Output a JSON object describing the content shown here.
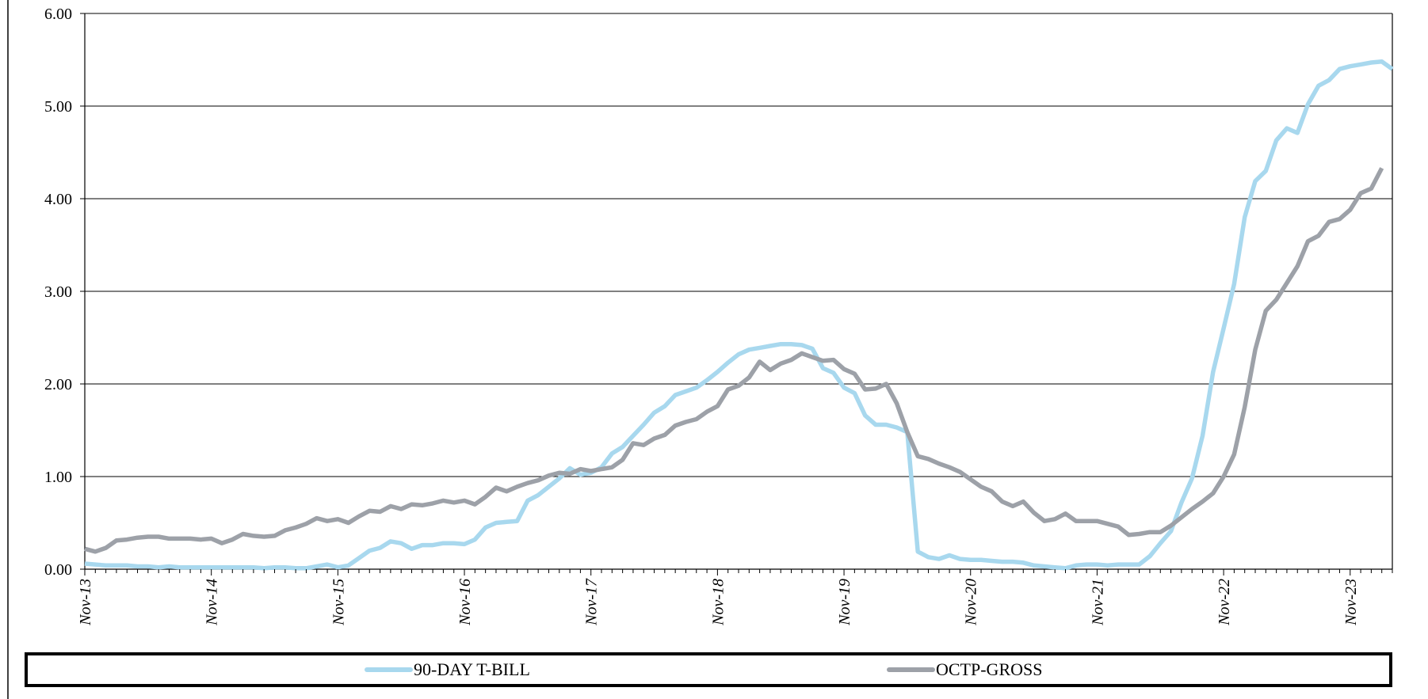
{
  "chart_data": {
    "type": "line",
    "title": "",
    "xlabel": "",
    "ylabel": "",
    "ylim": [
      0,
      6
    ],
    "y_ticks": [
      "0.00",
      "1.00",
      "2.00",
      "3.00",
      "4.00",
      "5.00",
      "6.00"
    ],
    "x_ticks": [
      "Nov-13",
      "Nov-14",
      "Nov-15",
      "Nov-16",
      "Nov-17",
      "Nov-18",
      "Nov-19",
      "Nov-20",
      "Nov-21",
      "Nov-22",
      "Nov-23"
    ],
    "grid": "horizontal",
    "legend_position": "bottom",
    "series": [
      {
        "name": "90-DAY T-BILL",
        "color": "#a8d8ee",
        "points": [
          [
            0,
            0.06
          ],
          [
            1,
            0.05
          ],
          [
            2,
            0.04
          ],
          [
            3,
            0.04
          ],
          [
            4,
            0.04
          ],
          [
            5,
            0.03
          ],
          [
            6,
            0.03
          ],
          [
            7,
            0.02
          ],
          [
            8,
            0.03
          ],
          [
            9,
            0.02
          ],
          [
            10,
            0.02
          ],
          [
            11,
            0.02
          ],
          [
            12,
            0.02
          ],
          [
            13,
            0.02
          ],
          [
            14,
            0.02
          ],
          [
            15,
            0.02
          ],
          [
            16,
            0.02
          ],
          [
            17,
            0.01
          ],
          [
            18,
            0.02
          ],
          [
            19,
            0.02
          ],
          [
            20,
            0.01
          ],
          [
            21,
            0.01
          ],
          [
            22,
            0.03
          ],
          [
            23,
            0.05
          ],
          [
            24,
            0.02
          ],
          [
            25,
            0.04
          ],
          [
            26,
            0.12
          ],
          [
            27,
            0.2
          ],
          [
            28,
            0.23
          ],
          [
            29,
            0.3
          ],
          [
            30,
            0.28
          ],
          [
            31,
            0.22
          ],
          [
            32,
            0.26
          ],
          [
            33,
            0.26
          ],
          [
            34,
            0.28
          ],
          [
            35,
            0.28
          ],
          [
            36,
            0.27
          ],
          [
            37,
            0.32
          ],
          [
            38,
            0.45
          ],
          [
            39,
            0.5
          ],
          [
            40,
            0.51
          ],
          [
            41,
            0.52
          ],
          [
            42,
            0.74
          ],
          [
            43,
            0.8
          ],
          [
            44,
            0.89
          ],
          [
            45,
            0.98
          ],
          [
            46,
            1.09
          ],
          [
            47,
            1.02
          ],
          [
            48,
            1.04
          ],
          [
            49,
            1.1
          ],
          [
            50,
            1.25
          ],
          [
            51,
            1.32
          ],
          [
            52,
            1.44
          ],
          [
            53,
            1.56
          ],
          [
            54,
            1.69
          ],
          [
            55,
            1.76
          ],
          [
            56,
            1.88
          ],
          [
            57,
            1.92
          ],
          [
            58,
            1.96
          ],
          [
            59,
            2.04
          ],
          [
            60,
            2.13
          ],
          [
            61,
            2.23
          ],
          [
            62,
            2.32
          ],
          [
            63,
            2.37
          ],
          [
            64,
            2.39
          ],
          [
            65,
            2.41
          ],
          [
            66,
            2.43
          ],
          [
            67,
            2.43
          ],
          [
            68,
            2.42
          ],
          [
            69,
            2.38
          ],
          [
            70,
            2.17
          ],
          [
            71,
            2.12
          ],
          [
            72,
            1.96
          ],
          [
            73,
            1.9
          ],
          [
            74,
            1.66
          ],
          [
            75,
            1.56
          ],
          [
            76,
            1.56
          ],
          [
            77,
            1.53
          ],
          [
            78,
            1.48
          ],
          [
            79,
            0.19
          ],
          [
            80,
            0.13
          ],
          [
            81,
            0.11
          ],
          [
            82,
            0.15
          ],
          [
            83,
            0.11
          ],
          [
            84,
            0.1
          ],
          [
            85,
            0.1
          ],
          [
            86,
            0.09
          ],
          [
            87,
            0.08
          ],
          [
            88,
            0.08
          ],
          [
            89,
            0.07
          ],
          [
            90,
            0.04
          ],
          [
            91,
            0.03
          ],
          [
            92,
            0.02
          ],
          [
            93,
            0.01
          ],
          [
            94,
            0.04
          ],
          [
            95,
            0.05
          ],
          [
            96,
            0.05
          ],
          [
            97,
            0.04
          ],
          [
            98,
            0.05
          ],
          [
            99,
            0.05
          ],
          [
            100,
            0.05
          ],
          [
            101,
            0.14
          ],
          [
            102,
            0.28
          ],
          [
            103,
            0.41
          ],
          [
            104,
            0.72
          ],
          [
            105,
            0.98
          ],
          [
            106,
            1.44
          ],
          [
            107,
            2.13
          ],
          [
            108,
            2.6
          ],
          [
            109,
            3.08
          ],
          [
            110,
            3.8
          ],
          [
            111,
            4.19
          ],
          [
            112,
            4.3
          ],
          [
            113,
            4.63
          ],
          [
            114,
            4.76
          ],
          [
            115,
            4.71
          ],
          [
            116,
            5.02
          ],
          [
            117,
            5.22
          ],
          [
            118,
            5.28
          ],
          [
            119,
            5.4
          ],
          [
            120,
            5.43
          ],
          [
            121,
            5.45
          ],
          [
            122,
            5.47
          ],
          [
            123,
            5.48
          ],
          [
            124,
            5.4
          ]
        ]
      },
      {
        "name": "OCTP-GROSS",
        "color": "#9da1a8",
        "points": [
          [
            0,
            0.22
          ],
          [
            1,
            0.19
          ],
          [
            2,
            0.23
          ],
          [
            3,
            0.31
          ],
          [
            4,
            0.32
          ],
          [
            5,
            0.34
          ],
          [
            6,
            0.35
          ],
          [
            7,
            0.35
          ],
          [
            8,
            0.33
          ],
          [
            9,
            0.33
          ],
          [
            10,
            0.33
          ],
          [
            11,
            0.32
          ],
          [
            12,
            0.33
          ],
          [
            13,
            0.28
          ],
          [
            14,
            0.32
          ],
          [
            15,
            0.38
          ],
          [
            16,
            0.36
          ],
          [
            17,
            0.35
          ],
          [
            18,
            0.36
          ],
          [
            19,
            0.42
          ],
          [
            20,
            0.45
          ],
          [
            21,
            0.49
          ],
          [
            22,
            0.55
          ],
          [
            23,
            0.52
          ],
          [
            24,
            0.54
          ],
          [
            25,
            0.5
          ],
          [
            26,
            0.57
          ],
          [
            27,
            0.63
          ],
          [
            28,
            0.62
          ],
          [
            29,
            0.68
          ],
          [
            30,
            0.65
          ],
          [
            31,
            0.7
          ],
          [
            32,
            0.69
          ],
          [
            33,
            0.71
          ],
          [
            34,
            0.74
          ],
          [
            35,
            0.72
          ],
          [
            36,
            0.74
          ],
          [
            37,
            0.7
          ],
          [
            38,
            0.78
          ],
          [
            39,
            0.88
          ],
          [
            40,
            0.84
          ],
          [
            41,
            0.89
          ],
          [
            42,
            0.93
          ],
          [
            43,
            0.96
          ],
          [
            44,
            1.01
          ],
          [
            45,
            1.04
          ],
          [
            46,
            1.03
          ],
          [
            47,
            1.08
          ],
          [
            48,
            1.06
          ],
          [
            49,
            1.08
          ],
          [
            50,
            1.1
          ],
          [
            51,
            1.18
          ],
          [
            52,
            1.36
          ],
          [
            53,
            1.34
          ],
          [
            54,
            1.41
          ],
          [
            55,
            1.45
          ],
          [
            56,
            1.55
          ],
          [
            57,
            1.59
          ],
          [
            58,
            1.62
          ],
          [
            59,
            1.7
          ],
          [
            60,
            1.76
          ],
          [
            61,
            1.94
          ],
          [
            62,
            1.98
          ],
          [
            63,
            2.07
          ],
          [
            64,
            2.24
          ],
          [
            65,
            2.15
          ],
          [
            66,
            2.22
          ],
          [
            67,
            2.26
          ],
          [
            68,
            2.33
          ],
          [
            69,
            2.29
          ],
          [
            70,
            2.25
          ],
          [
            71,
            2.26
          ],
          [
            72,
            2.16
          ],
          [
            73,
            2.11
          ],
          [
            74,
            1.94
          ],
          [
            75,
            1.95
          ],
          [
            76,
            2.0
          ],
          [
            77,
            1.79
          ],
          [
            78,
            1.48
          ],
          [
            79,
            1.22
          ],
          [
            80,
            1.19
          ],
          [
            81,
            1.14
          ],
          [
            82,
            1.1
          ],
          [
            83,
            1.05
          ],
          [
            84,
            0.97
          ],
          [
            85,
            0.89
          ],
          [
            86,
            0.84
          ],
          [
            87,
            0.73
          ],
          [
            88,
            0.68
          ],
          [
            89,
            0.73
          ],
          [
            90,
            0.61
          ],
          [
            91,
            0.52
          ],
          [
            92,
            0.54
          ],
          [
            93,
            0.6
          ],
          [
            94,
            0.52
          ],
          [
            95,
            0.52
          ],
          [
            96,
            0.52
          ],
          [
            97,
            0.49
          ],
          [
            98,
            0.46
          ],
          [
            99,
            0.37
          ],
          [
            100,
            0.38
          ],
          [
            101,
            0.4
          ],
          [
            102,
            0.4
          ],
          [
            103,
            0.47
          ],
          [
            104,
            0.56
          ],
          [
            105,
            0.65
          ],
          [
            106,
            0.73
          ],
          [
            107,
            0.82
          ],
          [
            108,
            1.0
          ],
          [
            109,
            1.24
          ],
          [
            110,
            1.75
          ],
          [
            111,
            2.37
          ],
          [
            112,
            2.79
          ],
          [
            113,
            2.91
          ],
          [
            114,
            3.09
          ],
          [
            115,
            3.27
          ],
          [
            116,
            3.54
          ],
          [
            117,
            3.6
          ],
          [
            118,
            3.75
          ],
          [
            119,
            3.78
          ],
          [
            120,
            3.88
          ],
          [
            121,
            4.06
          ],
          [
            122,
            4.11
          ],
          [
            123,
            4.33
          ]
        ]
      }
    ]
  }
}
